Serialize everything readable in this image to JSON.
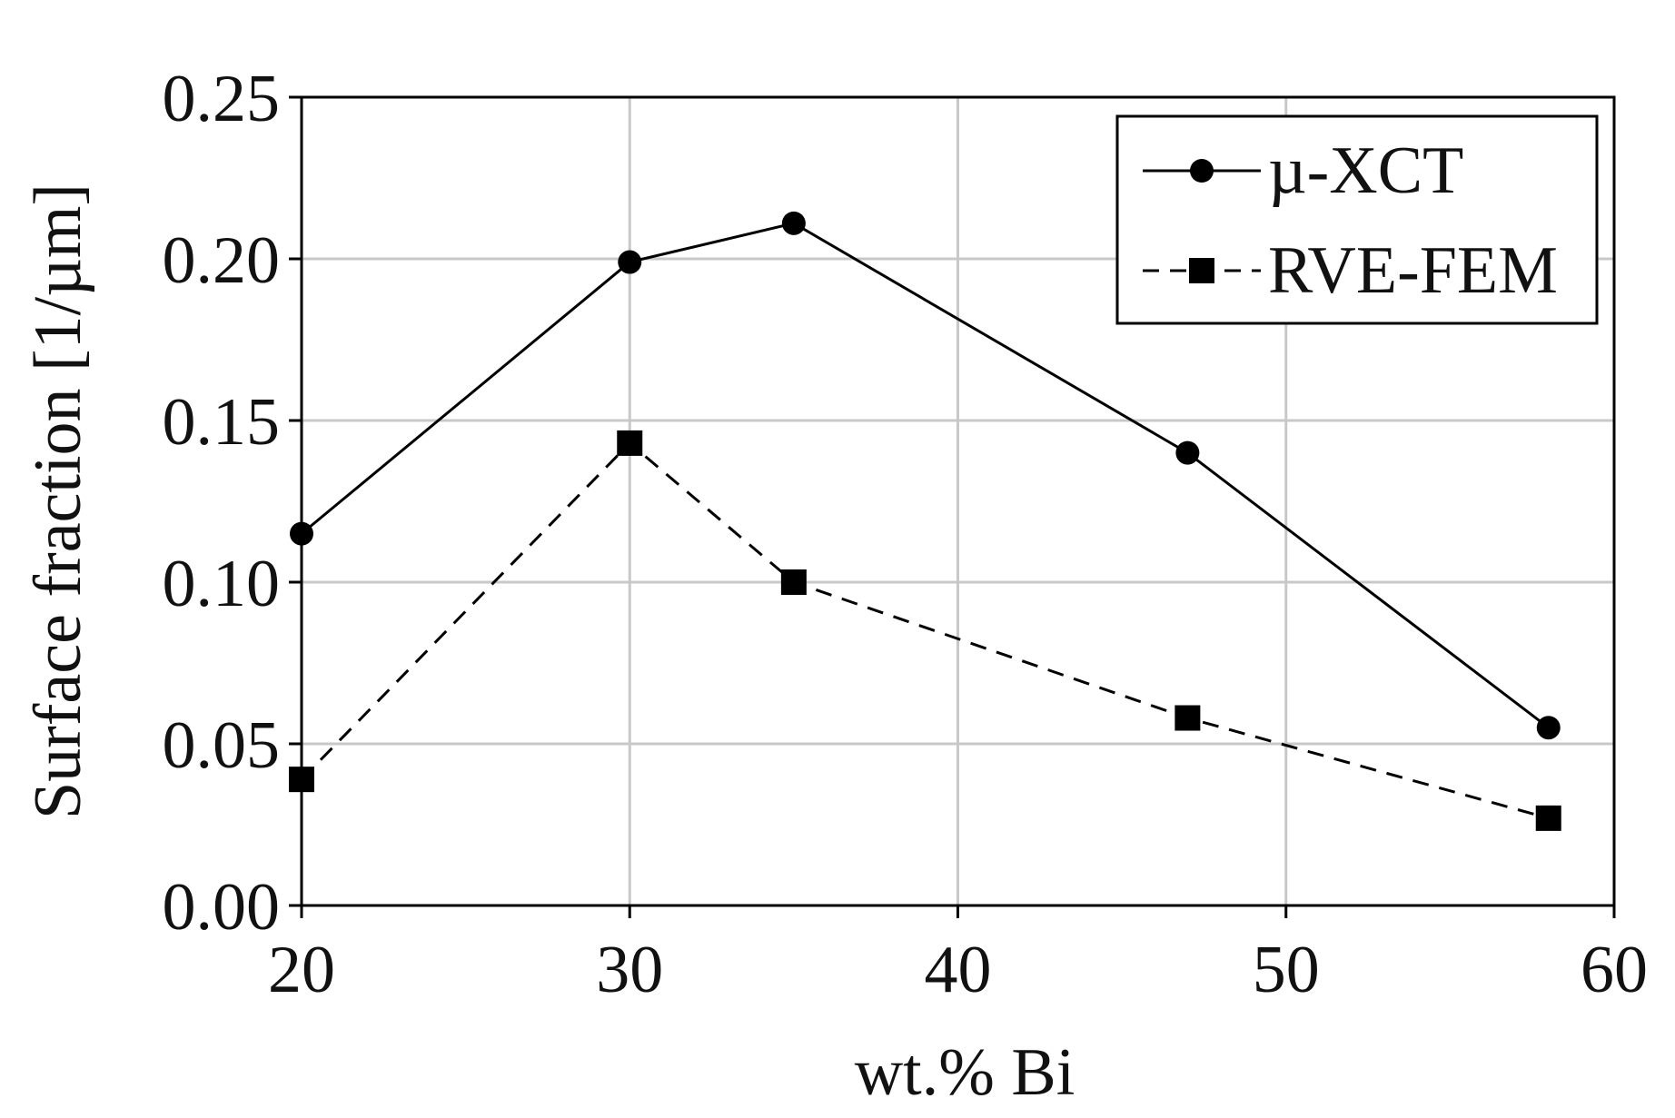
{
  "chart_data": {
    "type": "line",
    "title": "",
    "xlabel": "wt.% Bi",
    "ylabel": "Surface fraction [1/µm]",
    "xlim": [
      20,
      60
    ],
    "ylim": [
      0.0,
      0.25
    ],
    "xticks": [
      20,
      30,
      40,
      50,
      60
    ],
    "xtick_labels": [
      "20",
      "30",
      "40",
      "50",
      "60"
    ],
    "yticks": [
      0.0,
      0.05,
      0.1,
      0.15,
      0.2,
      0.25
    ],
    "ytick_labels": [
      "0.00",
      "0.05",
      "0.10",
      "0.15",
      "0.20",
      "0.25"
    ],
    "grid": true,
    "legend_position": "top-right",
    "series": [
      {
        "name": "µ-XCT",
        "marker": "circle",
        "line_style": "solid",
        "color": "#000000",
        "x": [
          20,
          30,
          35,
          47,
          58
        ],
        "y": [
          0.115,
          0.199,
          0.211,
          0.14,
          0.055
        ]
      },
      {
        "name": "RVE-FEM",
        "marker": "square",
        "line_style": "dashed",
        "color": "#000000",
        "x": [
          20,
          30,
          35,
          47,
          58
        ],
        "y": [
          0.039,
          0.143,
          0.1,
          0.058,
          0.027
        ]
      }
    ]
  }
}
